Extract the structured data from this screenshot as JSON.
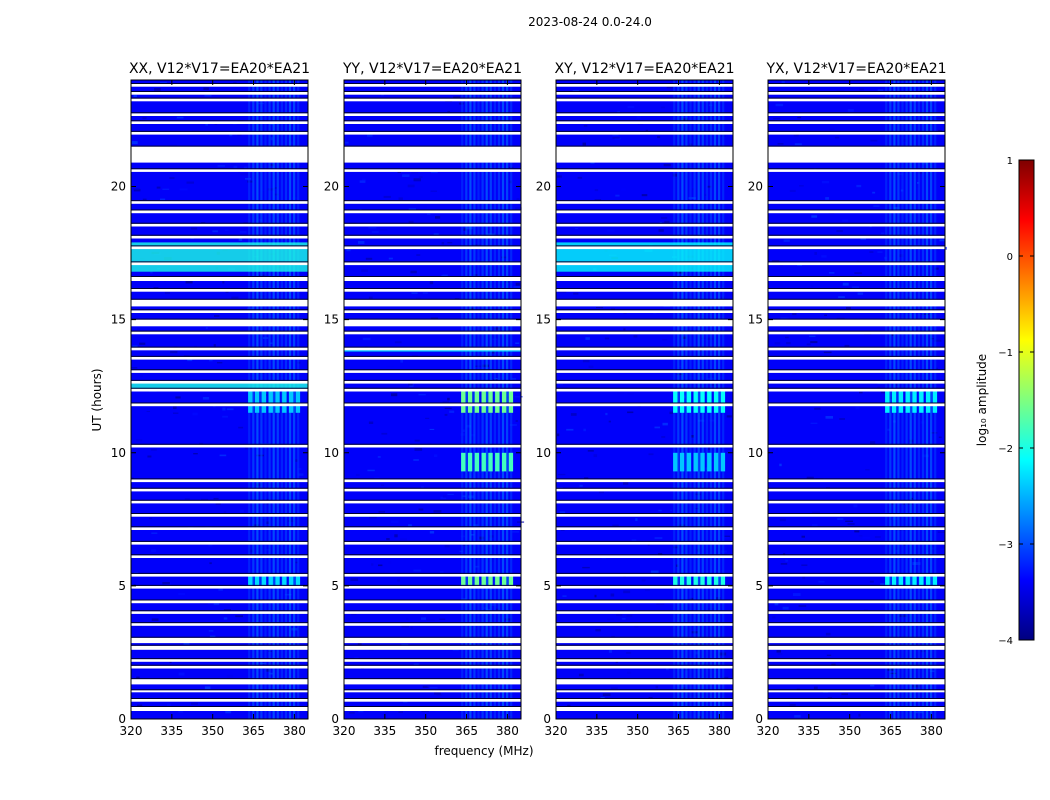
{
  "chart_data": {
    "type": "heatmap",
    "suptitle": "2023-08-24 0.0-24.0",
    "xlabel": "frequency (MHz)",
    "ylabel": "UT (hours)",
    "xlim": [
      320,
      385
    ],
    "ylim": [
      0,
      24
    ],
    "xticks": [
      320,
      335,
      350,
      365,
      380
    ],
    "yticks": [
      0,
      5,
      10,
      15,
      20
    ],
    "colorbar": {
      "label": "log₁₀ amplitude",
      "range": [
        -4,
        1
      ],
      "ticks": [
        1,
        0,
        -1,
        -2,
        -3,
        -4
      ],
      "tick_labels": [
        "1",
        "0",
        "−1",
        "−2",
        "−3",
        "−4"
      ],
      "colormap": "jet",
      "colors": [
        "#00007f",
        "#0000ff",
        "#007fff",
        "#00ffff",
        "#7fff7f",
        "#ffff00",
        "#ff7f00",
        "#ff0000",
        "#7f0000"
      ]
    },
    "background_level": -3.4,
    "rfi_band_mhz": [
      363,
      382
    ],
    "flagged_ut_hours": [
      [
        0.3,
        0.45
      ],
      [
        0.65,
        0.75
      ],
      [
        1.0,
        1.08
      ],
      [
        1.3,
        1.5
      ],
      [
        1.9,
        2.0
      ],
      [
        2.15,
        2.25
      ],
      [
        2.6,
        2.75
      ],
      [
        2.85,
        3.05
      ],
      [
        3.5,
        3.6
      ],
      [
        3.95,
        4.05
      ],
      [
        4.35,
        4.45
      ],
      [
        4.9,
        5.0
      ],
      [
        5.35,
        5.45
      ],
      [
        6.05,
        6.15
      ],
      [
        6.55,
        6.65
      ],
      [
        7.1,
        7.2
      ],
      [
        7.6,
        7.7
      ],
      [
        8.1,
        8.2
      ],
      [
        8.55,
        8.65
      ],
      [
        8.9,
        9.0
      ],
      [
        10.2,
        10.3
      ],
      [
        11.75,
        11.85
      ],
      [
        12.3,
        12.4
      ],
      [
        12.6,
        12.7
      ],
      [
        13.0,
        13.1
      ],
      [
        13.5,
        13.6
      ],
      [
        13.85,
        13.95
      ],
      [
        14.45,
        14.55
      ],
      [
        14.75,
        15.0
      ],
      [
        15.25,
        15.35
      ],
      [
        15.5,
        15.75
      ],
      [
        16.05,
        16.15
      ],
      [
        16.45,
        16.6
      ],
      [
        17.05,
        17.15
      ],
      [
        17.65,
        17.75
      ],
      [
        18.05,
        18.15
      ],
      [
        18.5,
        18.6
      ],
      [
        19.0,
        19.1
      ],
      [
        19.35,
        19.45
      ],
      [
        20.55,
        20.65
      ],
      [
        20.9,
        21.5
      ],
      [
        21.95,
        22.05
      ],
      [
        22.35,
        22.45
      ],
      [
        22.65,
        22.75
      ],
      [
        23.2,
        23.3
      ],
      [
        23.45,
        23.55
      ],
      [
        23.75,
        23.85
      ]
    ],
    "flag_color": "#ffffff",
    "panels": [
      {
        "title": "XX, V12*V17=EA20*EA21",
        "bright_bands_ut": [
          [
            16.8,
            17.9,
            -2.0
          ],
          [
            12.3,
            12.6,
            -2.0
          ]
        ],
        "rfi_peak_ut": [
          [
            11.5,
            12.3,
            -2.4
          ],
          [
            5.0,
            5.4,
            -2.3
          ]
        ]
      },
      {
        "title": "YY, V12*V17=EA20*EA21",
        "bright_bands_ut": [
          [
            13.8,
            13.9,
            -2.2
          ],
          [
            7.6,
            7.7,
            -2.3
          ]
        ],
        "rfi_peak_ut": [
          [
            11.5,
            12.3,
            -1.6
          ],
          [
            9.3,
            10.0,
            -1.8
          ],
          [
            5.0,
            5.4,
            -1.6
          ]
        ]
      },
      {
        "title": "XY, V12*V17=EA20*EA21",
        "bright_bands_ut": [
          [
            16.8,
            17.9,
            -2.1
          ]
        ],
        "rfi_peak_ut": [
          [
            11.5,
            12.3,
            -2.1
          ],
          [
            9.3,
            10.0,
            -2.4
          ],
          [
            5.0,
            5.4,
            -2.0
          ]
        ]
      },
      {
        "title": "YX, V12*V17=EA20*EA21",
        "bright_bands_ut": [],
        "rfi_peak_ut": [
          [
            11.5,
            12.3,
            -2.2
          ],
          [
            5.0,
            5.4,
            -2.2
          ]
        ]
      }
    ]
  }
}
